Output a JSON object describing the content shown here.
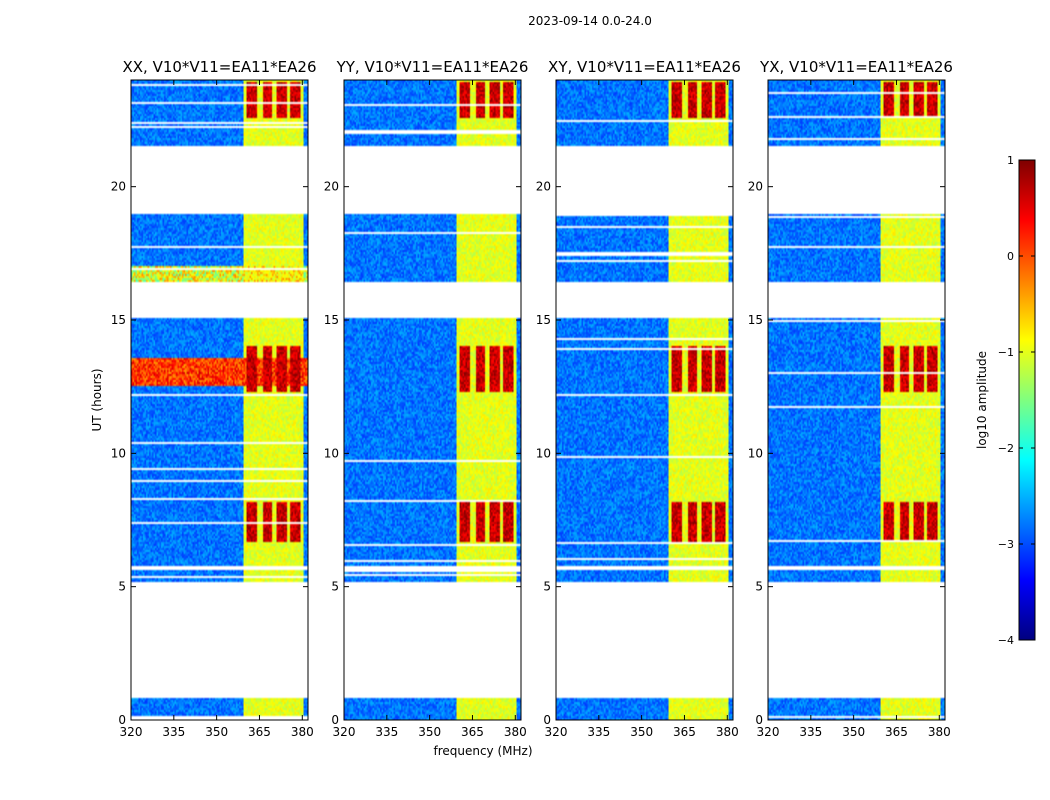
{
  "figure": {
    "suptitle": "2023-09-14 0.0-24.0",
    "xlabel": "frequency (MHz)",
    "ylabel": "UT (hours)",
    "colorbar_label": "log10 amplitude"
  },
  "chart_data": {
    "type": "heatmap",
    "xlim": [
      320,
      382
    ],
    "ylim": [
      0,
      24
    ],
    "xticks": [
      320,
      335,
      350,
      365,
      380
    ],
    "yticks": [
      0,
      5,
      10,
      15,
      20
    ],
    "colorbar": {
      "min": -4,
      "max": 1,
      "ticks": [
        1,
        0,
        -1,
        -2,
        -3,
        -4
      ],
      "colormap": "jet"
    },
    "panels": [
      {
        "id": "xx",
        "title": "XX, V10*V11=EA11*EA26"
      },
      {
        "id": "yy",
        "title": "YY, V10*V11=EA11*EA26"
      },
      {
        "id": "xy",
        "title": "XY, V10*V11=EA11*EA26"
      },
      {
        "id": "yx",
        "title": "YX, V10*V11=EA11*EA26"
      }
    ],
    "data_ut_ranges_hours": [
      [
        0.0,
        0.85
      ],
      [
        5.15,
        5.6
      ],
      [
        5.75,
        15.1
      ],
      [
        16.4,
        19.0
      ],
      [
        21.5,
        24.0
      ]
    ],
    "bright_band_mhz": [
      359.5,
      380.5
    ],
    "bright_columns_mhz": [
      [
        360.5,
        364.0
      ],
      [
        366.0,
        369.5
      ],
      [
        371.0,
        374.5
      ],
      [
        375.5,
        379.5
      ]
    ],
    "bright_intervals_hours": [
      [
        6.7,
        8.2
      ],
      [
        12.3,
        14.0
      ],
      [
        22.6,
        23.9
      ]
    ]
  }
}
